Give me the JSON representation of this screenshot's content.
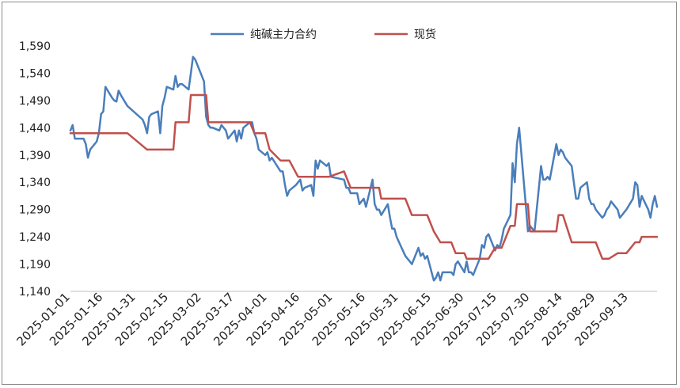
{
  "chart_data": {
    "type": "line",
    "title": "",
    "xlabel": "",
    "ylabel": "",
    "ylim": [
      1140,
      1590
    ],
    "yticks": [
      1140,
      1190,
      1240,
      1290,
      1340,
      1390,
      1440,
      1490,
      1540,
      1590
    ],
    "ytick_labels": [
      "1,140",
      "1,190",
      "1,240",
      "1,290",
      "1,340",
      "1,390",
      "1,440",
      "1,490",
      "1,540",
      "1,590"
    ],
    "xtick_labels": [
      "2025-01-01",
      "2025-01-16",
      "2025-01-31",
      "2025-02-15",
      "2025-03-02",
      "2025-03-17",
      "2025-04-01",
      "2025-04-16",
      "2025-05-01",
      "2025-05-16",
      "2025-05-31",
      "2025-06-15",
      "2025-06-30",
      "2025-07-15",
      "2025-07-30",
      "2025-08-14",
      "2025-08-29",
      "2025-09-13"
    ],
    "xlim": [
      "2025-01-01",
      "2025-09-26"
    ],
    "grid": false,
    "legend_position": "top",
    "series": [
      {
        "name": "纯碱主力合约",
        "color": "#4a7ebb",
        "points": [
          [
            "2025-01-01",
            1435
          ],
          [
            "2025-01-02",
            1445
          ],
          [
            "2025-01-03",
            1420
          ],
          [
            "2025-01-06",
            1420
          ],
          [
            "2025-01-07",
            1420
          ],
          [
            "2025-01-08",
            1410
          ],
          [
            "2025-01-09",
            1385
          ],
          [
            "2025-01-10",
            1400
          ],
          [
            "2025-01-13",
            1415
          ],
          [
            "2025-01-14",
            1430
          ],
          [
            "2025-01-15",
            1465
          ],
          [
            "2025-01-16",
            1470
          ],
          [
            "2025-01-17",
            1515
          ],
          [
            "2025-01-20",
            1495
          ],
          [
            "2025-01-21",
            1490
          ],
          [
            "2025-01-22",
            1488
          ],
          [
            "2025-01-23",
            1508
          ],
          [
            "2025-01-24",
            1500
          ],
          [
            "2025-01-27",
            1480
          ],
          [
            "2025-02-03",
            1455
          ],
          [
            "2025-02-04",
            1445
          ],
          [
            "2025-02-05",
            1430
          ],
          [
            "2025-02-06",
            1460
          ],
          [
            "2025-02-07",
            1465
          ],
          [
            "2025-02-10",
            1470
          ],
          [
            "2025-02-11",
            1430
          ],
          [
            "2025-02-12",
            1480
          ],
          [
            "2025-02-13",
            1495
          ],
          [
            "2025-02-14",
            1515
          ],
          [
            "2025-02-17",
            1510
          ],
          [
            "2025-02-18",
            1535
          ],
          [
            "2025-02-19",
            1515
          ],
          [
            "2025-02-20",
            1520
          ],
          [
            "2025-02-21",
            1520
          ],
          [
            "2025-02-24",
            1510
          ],
          [
            "2025-02-25",
            1540
          ],
          [
            "2025-02-26",
            1570
          ],
          [
            "2025-02-27",
            1565
          ],
          [
            "2025-02-28",
            1555
          ],
          [
            "2025-03-03",
            1525
          ],
          [
            "2025-03-04",
            1460
          ],
          [
            "2025-03-05",
            1445
          ],
          [
            "2025-03-06",
            1440
          ],
          [
            "2025-03-07",
            1440
          ],
          [
            "2025-03-10",
            1435
          ],
          [
            "2025-03-11",
            1445
          ],
          [
            "2025-03-12",
            1440
          ],
          [
            "2025-03-13",
            1435
          ],
          [
            "2025-03-14",
            1420
          ],
          [
            "2025-03-17",
            1435
          ],
          [
            "2025-03-18",
            1415
          ],
          [
            "2025-03-19",
            1435
          ],
          [
            "2025-03-20",
            1420
          ],
          [
            "2025-03-21",
            1440
          ],
          [
            "2025-03-24",
            1450
          ],
          [
            "2025-03-25",
            1450
          ],
          [
            "2025-03-26",
            1430
          ],
          [
            "2025-03-27",
            1420
          ],
          [
            "2025-03-28",
            1400
          ],
          [
            "2025-03-31",
            1390
          ],
          [
            "2025-04-01",
            1395
          ],
          [
            "2025-04-02",
            1380
          ],
          [
            "2025-04-03",
            1385
          ],
          [
            "2025-04-07",
            1360
          ],
          [
            "2025-04-08",
            1360
          ],
          [
            "2025-04-09",
            1335
          ],
          [
            "2025-04-10",
            1315
          ],
          [
            "2025-04-11",
            1325
          ],
          [
            "2025-04-14",
            1335
          ],
          [
            "2025-04-15",
            1340
          ],
          [
            "2025-04-16",
            1345
          ],
          [
            "2025-04-17",
            1325
          ],
          [
            "2025-04-18",
            1330
          ],
          [
            "2025-04-21",
            1335
          ],
          [
            "2025-04-22",
            1315
          ],
          [
            "2025-04-23",
            1380
          ],
          [
            "2025-04-24",
            1365
          ],
          [
            "2025-04-25",
            1380
          ],
          [
            "2025-04-28",
            1370
          ],
          [
            "2025-04-29",
            1375
          ],
          [
            "2025-04-30",
            1350
          ],
          [
            "2025-05-06",
            1345
          ],
          [
            "2025-05-07",
            1330
          ],
          [
            "2025-05-08",
            1330
          ],
          [
            "2025-05-09",
            1320
          ],
          [
            "2025-05-12",
            1320
          ],
          [
            "2025-05-13",
            1300
          ],
          [
            "2025-05-14",
            1305
          ],
          [
            "2025-05-15",
            1310
          ],
          [
            "2025-05-16",
            1295
          ],
          [
            "2025-05-19",
            1345
          ],
          [
            "2025-05-20",
            1300
          ],
          [
            "2025-05-21",
            1290
          ],
          [
            "2025-05-22",
            1290
          ],
          [
            "2025-05-23",
            1280
          ],
          [
            "2025-05-26",
            1300
          ],
          [
            "2025-05-27",
            1275
          ],
          [
            "2025-05-28",
            1255
          ],
          [
            "2025-05-29",
            1255
          ],
          [
            "2025-05-30",
            1240
          ],
          [
            "2025-06-03",
            1205
          ],
          [
            "2025-06-04",
            1200
          ],
          [
            "2025-06-05",
            1195
          ],
          [
            "2025-06-06",
            1190
          ],
          [
            "2025-06-09",
            1220
          ],
          [
            "2025-06-10",
            1205
          ],
          [
            "2025-06-11",
            1210
          ],
          [
            "2025-06-12",
            1200
          ],
          [
            "2025-06-13",
            1205
          ],
          [
            "2025-06-16",
            1160
          ],
          [
            "2025-06-17",
            1165
          ],
          [
            "2025-06-18",
            1175
          ],
          [
            "2025-06-19",
            1160
          ],
          [
            "2025-06-20",
            1175
          ],
          [
            "2025-06-23",
            1175
          ],
          [
            "2025-06-24",
            1175
          ],
          [
            "2025-06-25",
            1170
          ],
          [
            "2025-06-26",
            1190
          ],
          [
            "2025-06-27",
            1195
          ],
          [
            "2025-06-30",
            1175
          ],
          [
            "2025-07-01",
            1195
          ],
          [
            "2025-07-02",
            1175
          ],
          [
            "2025-07-03",
            1175
          ],
          [
            "2025-07-04",
            1170
          ],
          [
            "2025-07-07",
            1200
          ],
          [
            "2025-07-08",
            1225
          ],
          [
            "2025-07-09",
            1220
          ],
          [
            "2025-07-10",
            1240
          ],
          [
            "2025-07-11",
            1245
          ],
          [
            "2025-07-14",
            1215
          ],
          [
            "2025-07-15",
            1225
          ],
          [
            "2025-07-16",
            1220
          ],
          [
            "2025-07-17",
            1235
          ],
          [
            "2025-07-18",
            1255
          ],
          [
            "2025-07-21",
            1280
          ],
          [
            "2025-07-22",
            1375
          ],
          [
            "2025-07-23",
            1340
          ],
          [
            "2025-07-24",
            1410
          ],
          [
            "2025-07-25",
            1440
          ],
          [
            "2025-07-28",
            1300
          ],
          [
            "2025-07-29",
            1250
          ],
          [
            "2025-07-30",
            1260
          ],
          [
            "2025-07-31",
            1255
          ],
          [
            "2025-08-01",
            1250
          ],
          [
            "2025-08-04",
            1370
          ],
          [
            "2025-08-05",
            1345
          ],
          [
            "2025-08-06",
            1345
          ],
          [
            "2025-08-07",
            1350
          ],
          [
            "2025-08-08",
            1345
          ],
          [
            "2025-08-11",
            1410
          ],
          [
            "2025-08-12",
            1390
          ],
          [
            "2025-08-13",
            1400
          ],
          [
            "2025-08-14",
            1395
          ],
          [
            "2025-08-15",
            1385
          ],
          [
            "2025-08-18",
            1370
          ],
          [
            "2025-08-19",
            1340
          ],
          [
            "2025-08-20",
            1310
          ],
          [
            "2025-08-21",
            1310
          ],
          [
            "2025-08-22",
            1330
          ],
          [
            "2025-08-25",
            1340
          ],
          [
            "2025-08-26",
            1310
          ],
          [
            "2025-08-27",
            1300
          ],
          [
            "2025-08-28",
            1300
          ],
          [
            "2025-08-29",
            1290
          ],
          [
            "2025-09-01",
            1275
          ],
          [
            "2025-09-02",
            1280
          ],
          [
            "2025-09-03",
            1290
          ],
          [
            "2025-09-04",
            1295
          ],
          [
            "2025-09-05",
            1305
          ],
          [
            "2025-09-08",
            1290
          ],
          [
            "2025-09-09",
            1275
          ],
          [
            "2025-09-10",
            1280
          ],
          [
            "2025-09-11",
            1285
          ],
          [
            "2025-09-12",
            1290
          ],
          [
            "2025-09-15",
            1310
          ],
          [
            "2025-09-16",
            1340
          ],
          [
            "2025-09-17",
            1335
          ],
          [
            "2025-09-18",
            1295
          ],
          [
            "2025-09-19",
            1315
          ],
          [
            "2025-09-22",
            1290
          ],
          [
            "2025-09-23",
            1275
          ],
          [
            "2025-09-24",
            1300
          ],
          [
            "2025-09-25",
            1315
          ],
          [
            "2025-09-26",
            1295
          ]
        ]
      },
      {
        "name": "现货",
        "color": "#c0504d",
        "points": [
          [
            "2025-01-01",
            1430
          ],
          [
            "2025-01-27",
            1430
          ],
          [
            "2025-02-05",
            1400
          ],
          [
            "2025-02-17",
            1400
          ],
          [
            "2025-02-18",
            1450
          ],
          [
            "2025-02-24",
            1450
          ],
          [
            "2025-02-25",
            1500
          ],
          [
            "2025-03-04",
            1500
          ],
          [
            "2025-03-05",
            1450
          ],
          [
            "2025-03-24",
            1450
          ],
          [
            "2025-03-26",
            1430
          ],
          [
            "2025-03-31",
            1430
          ],
          [
            "2025-04-02",
            1400
          ],
          [
            "2025-04-07",
            1380
          ],
          [
            "2025-04-11",
            1380
          ],
          [
            "2025-04-15",
            1350
          ],
          [
            "2025-04-29",
            1350
          ],
          [
            "2025-05-06",
            1360
          ],
          [
            "2025-05-09",
            1330
          ],
          [
            "2025-05-22",
            1330
          ],
          [
            "2025-05-23",
            1310
          ],
          [
            "2025-06-03",
            1310
          ],
          [
            "2025-06-06",
            1280
          ],
          [
            "2025-06-13",
            1280
          ],
          [
            "2025-06-16",
            1250
          ],
          [
            "2025-06-19",
            1230
          ],
          [
            "2025-06-24",
            1230
          ],
          [
            "2025-06-26",
            1210
          ],
          [
            "2025-06-30",
            1210
          ],
          [
            "2025-07-01",
            1200
          ],
          [
            "2025-07-11",
            1200
          ],
          [
            "2025-07-14",
            1220
          ],
          [
            "2025-07-17",
            1220
          ],
          [
            "2025-07-21",
            1260
          ],
          [
            "2025-07-23",
            1260
          ],
          [
            "2025-07-24",
            1300
          ],
          [
            "2025-07-29",
            1300
          ],
          [
            "2025-07-30",
            1250
          ],
          [
            "2025-08-11",
            1250
          ],
          [
            "2025-08-12",
            1280
          ],
          [
            "2025-08-14",
            1280
          ],
          [
            "2025-08-18",
            1230
          ],
          [
            "2025-08-29",
            1230
          ],
          [
            "2025-09-01",
            1200
          ],
          [
            "2025-09-04",
            1200
          ],
          [
            "2025-09-08",
            1210
          ],
          [
            "2025-09-12",
            1210
          ],
          [
            "2025-09-16",
            1230
          ],
          [
            "2025-09-18",
            1230
          ],
          [
            "2025-09-19",
            1240
          ],
          [
            "2025-09-26",
            1240
          ]
        ]
      }
    ]
  }
}
